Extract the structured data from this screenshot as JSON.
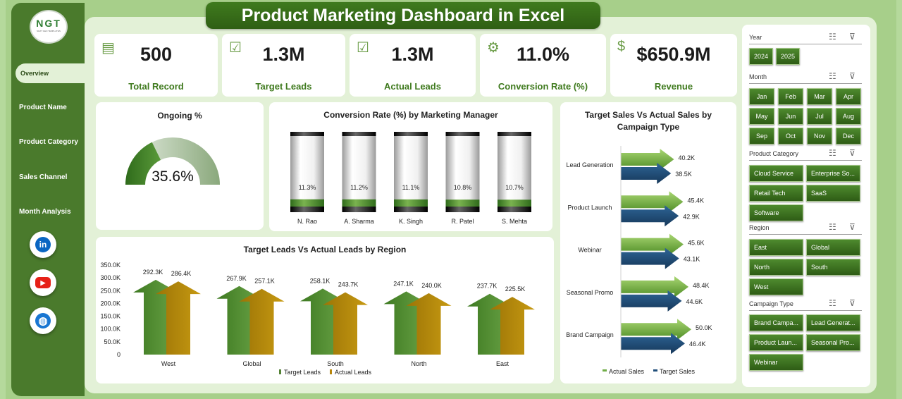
{
  "title": "Product Marketing Dashboard in Excel",
  "logo": {
    "text": "NGT",
    "subtext": "NEXT GEN TEMPLATES"
  },
  "nav": [
    "Overview",
    "Product Name",
    "Product Category",
    "Sales Channel",
    "Month Analysis"
  ],
  "social": [
    {
      "name": "linkedin-icon",
      "label": "in",
      "color": "#0a66c2"
    },
    {
      "name": "youtube-icon",
      "label": "▶",
      "color": "#e62117"
    },
    {
      "name": "globe-icon",
      "label": "◍",
      "color": "#1976d2"
    }
  ],
  "kpis": [
    {
      "value": "500",
      "label": "Total Record",
      "icon": "document-icon"
    },
    {
      "value": "1.3M",
      "label": "Target Leads",
      "icon": "clipboard-check-icon"
    },
    {
      "value": "1.3M",
      "label": "Actual Leads",
      "icon": "clipboard-check-icon"
    },
    {
      "value": "11.0%",
      "label": "Conversion Rate (%)",
      "icon": "money-gear-icon"
    },
    {
      "value": "$650.9M",
      "label": "Revenue",
      "icon": "money-bag-icon"
    }
  ],
  "ongoing": {
    "title": "Ongoing %",
    "value_label": "35.6%",
    "value": 0.356
  },
  "conv_chart": {
    "title": "Conversion Rate (%) by Marketing Manager"
  },
  "region_chart": {
    "title": "Target Leads Vs Actual Leads by Region"
  },
  "campaign_chart": {
    "title": "Target Sales Vs Actual Sales by Campaign Type"
  },
  "chart_data": [
    {
      "type": "bar",
      "title": "Conversion Rate (%) by Marketing Manager",
      "categories": [
        "N. Rao",
        "A. Sharma",
        "K. Singh",
        "R. Patel",
        "S. Mehta"
      ],
      "values": [
        11.3,
        11.2,
        11.1,
        10.8,
        10.7
      ],
      "labels": [
        "11.3%",
        "11.2%",
        "11.1%",
        "10.8%",
        "10.7%"
      ]
    },
    {
      "type": "bar",
      "title": "Target Leads Vs Actual Leads by Region",
      "categories": [
        "West",
        "Global",
        "South",
        "North",
        "East"
      ],
      "series": [
        {
          "name": "Target Leads",
          "values": [
            292.3,
            267.9,
            258.1,
            247.1,
            237.7
          ],
          "labels": [
            "292.3K",
            "267.9K",
            "258.1K",
            "247.1K",
            "237.7K"
          ],
          "color": "#548235"
        },
        {
          "name": "Actual Leads",
          "values": [
            286.4,
            257.1,
            243.7,
            240.0,
            225.5
          ],
          "labels": [
            "286.4K",
            "257.1K",
            "243.7K",
            "240.0K",
            "225.5K"
          ],
          "color": "#b8860b"
        }
      ],
      "ylim": [
        0,
        350
      ],
      "yticks": [
        "0",
        "50.0K",
        "100.0K",
        "150.0K",
        "200.0K",
        "250.0K",
        "300.0K",
        "350.0K"
      ]
    },
    {
      "type": "bar",
      "orientation": "horizontal",
      "title": "Target Sales Vs Actual Sales by Campaign Type",
      "categories": [
        "Lead Generation",
        "Product Launch",
        "Webinar",
        "Seasonal Promo",
        "Brand Campaign"
      ],
      "series": [
        {
          "name": "Actual Sales",
          "values": [
            40.2,
            45.4,
            45.6,
            48.4,
            50.0
          ],
          "labels": [
            "40.2K",
            "45.4K",
            "45.6K",
            "48.4K",
            "50.0K"
          ],
          "color": "#70ad47"
        },
        {
          "name": "Target Sales",
          "values": [
            38.5,
            42.9,
            43.1,
            44.6,
            46.4
          ],
          "labels": [
            "38.5K",
            "42.9K",
            "43.1K",
            "44.6K",
            "46.4K"
          ],
          "color": "#1f4e79"
        }
      ]
    }
  ],
  "slicers": [
    {
      "name": "Year",
      "items": [
        "2024",
        "2025"
      ]
    },
    {
      "name": "Month",
      "items": [
        "Jan",
        "Feb",
        "Mar",
        "Apr",
        "May",
        "Jun",
        "Jul",
        "Aug",
        "Sep",
        "Oct",
        "Nov",
        "Dec"
      ]
    },
    {
      "name": "Product Category",
      "items": [
        "Cloud Service",
        "Enterprise So...",
        "Retail Tech",
        "SaaS",
        "Software"
      ]
    },
    {
      "name": "Region",
      "items": [
        "East",
        "Global",
        "North",
        "South",
        "West"
      ]
    },
    {
      "name": "Campaign Type",
      "items": [
        "Brand Campa...",
        "Lead Generat...",
        "Product Laun...",
        "Seasonal Pro...",
        "Webinar"
      ]
    }
  ]
}
